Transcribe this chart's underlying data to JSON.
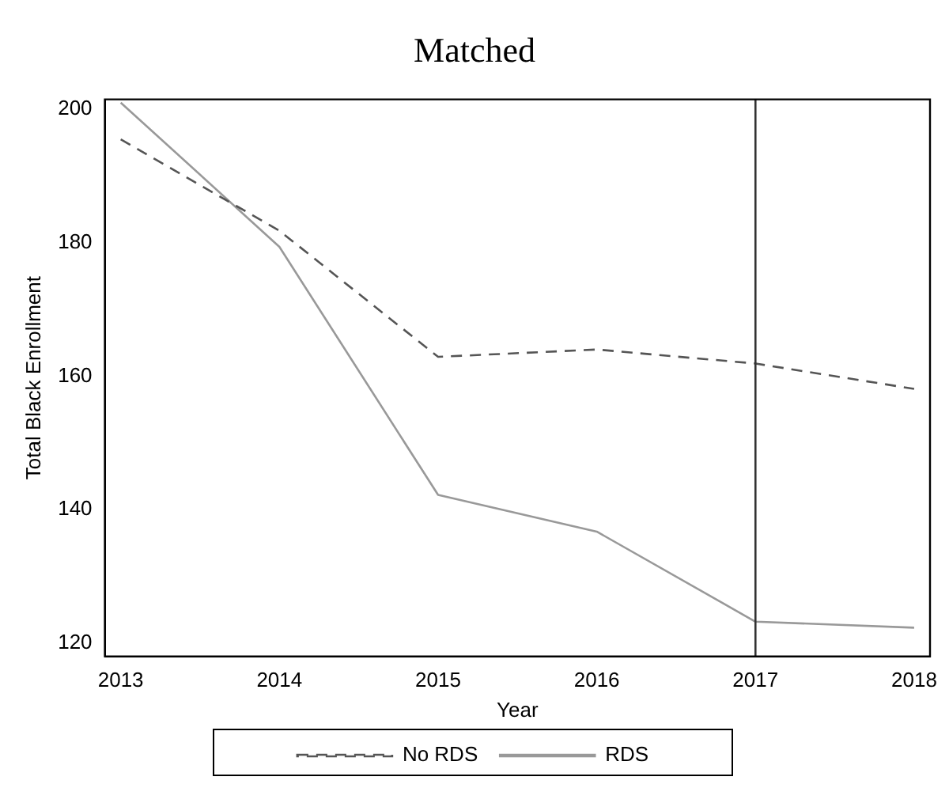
{
  "chart_data": {
    "type": "line",
    "title": "Matched",
    "xlabel": "Year",
    "ylabel": "Total Black Enrollment",
    "x": [
      2013,
      2014,
      2015,
      2016,
      2017,
      2018
    ],
    "series": [
      {
        "name": "No RDS",
        "color": "#555555",
        "line_style": "dashed",
        "values": [
          195.5,
          181.8,
          162.9,
          164,
          161.9,
          158.1
        ]
      },
      {
        "name": "RDS",
        "color": "#999999",
        "line_style": "solid",
        "values": [
          201,
          179.4,
          142.2,
          136.7,
          123.2,
          122.3
        ]
      }
    ],
    "xlim": [
      2012.9,
      2018.1
    ],
    "xticks": [
      2013,
      2014,
      2015,
      2016,
      2017,
      2018
    ],
    "ylim": [
      118,
      201.5
    ],
    "yticks": [
      120,
      140,
      160,
      180,
      200
    ],
    "ref_lines": [
      {
        "axis": "x",
        "value": 2017,
        "color": "#333333"
      }
    ],
    "grid": false,
    "legend": "bottom",
    "marker": "none"
  }
}
